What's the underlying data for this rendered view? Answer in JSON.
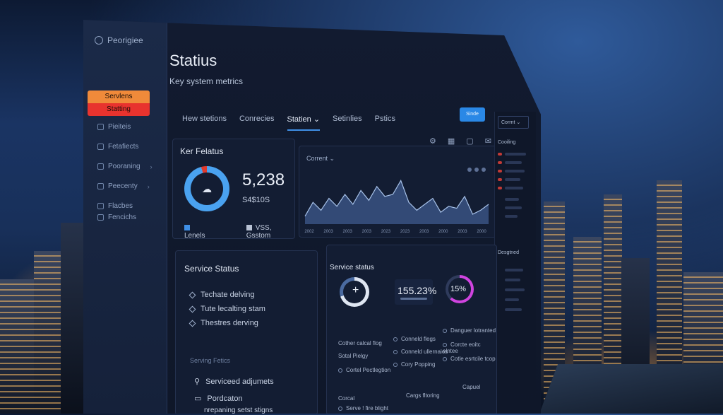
{
  "app": {
    "brand": "Peorigiee"
  },
  "sidebar": {
    "active": {
      "line1": "Servlens",
      "line2": "Statting"
    },
    "items": [
      {
        "label": "Pieiteis"
      },
      {
        "label": "Fetafiects"
      },
      {
        "label": "Pooraning"
      },
      {
        "label": "Peecenty"
      },
      {
        "label": "Flacbes"
      },
      {
        "label": "Fencichs"
      }
    ]
  },
  "header": {
    "title": "Statius",
    "subtitle": "Key system metrics"
  },
  "tabs": [
    {
      "label": "Hew stetions"
    },
    {
      "label": "Conrecies"
    },
    {
      "label": "Statien"
    },
    {
      "label": "Setinlies"
    },
    {
      "label": "Pstics"
    }
  ],
  "toolbar": {
    "cta_label": "Sinde",
    "icons": [
      "bell-icon",
      "grid-icon",
      "chat-icon",
      "mail-icon"
    ]
  },
  "status_card": {
    "title": "Ker Felatus",
    "value": "5,238",
    "sub_value": "S4$10S",
    "legend": [
      {
        "label": "Lenels",
        "color": "#3f8fe6"
      },
      {
        "label": "VSS, Gsstom",
        "color": "#b8c2d4"
      }
    ]
  },
  "chart_data": {
    "type": "area",
    "title": "Corrent",
    "x_ticks": [
      "2002",
      "2003",
      "2003",
      "2003",
      "2023",
      "2023",
      "2003",
      "2000",
      "2003",
      "2000"
    ],
    "values": [
      8,
      22,
      14,
      26,
      18,
      30,
      20,
      34,
      24,
      38,
      28,
      30,
      44,
      22,
      14,
      20,
      26,
      12,
      18,
      16,
      28,
      10,
      14,
      20
    ],
    "ylim": [
      0,
      50
    ]
  },
  "right_panel": {
    "select_label": "Corrnt",
    "section1": "Cooiling",
    "section2": "Desgtned"
  },
  "service_left": {
    "title": "Service Status",
    "items": [
      {
        "label": "Techate delving"
      },
      {
        "label": "Tute lecalting stam"
      },
      {
        "label": "Thestres derving"
      }
    ],
    "section": "Serving Fetics",
    "items2": [
      {
        "label": "Serviceed adjumets"
      },
      {
        "label": "Pordcaton"
      },
      {
        "label": "nrepaning setst stigns"
      }
    ]
  },
  "service_right": {
    "title": "Service status",
    "pct1": "155.23%",
    "pct2": "15%",
    "grid": [
      [
        "Cother calcal flog",
        "Conneld flegs",
        "Danguer lotranted"
      ],
      [
        "Sotal Pielgy",
        "Conneld ullernaios",
        "Corcte eoitc elntee"
      ],
      [
        "Cortel Pectlegtion",
        "Cory Popping",
        "Cotle esrtcile tcop"
      ]
    ],
    "footer1": "Corcal",
    "footer2": "Serve ! fire blight",
    "footer3": "Cargs fltoring",
    "footer4": "Capuel"
  }
}
